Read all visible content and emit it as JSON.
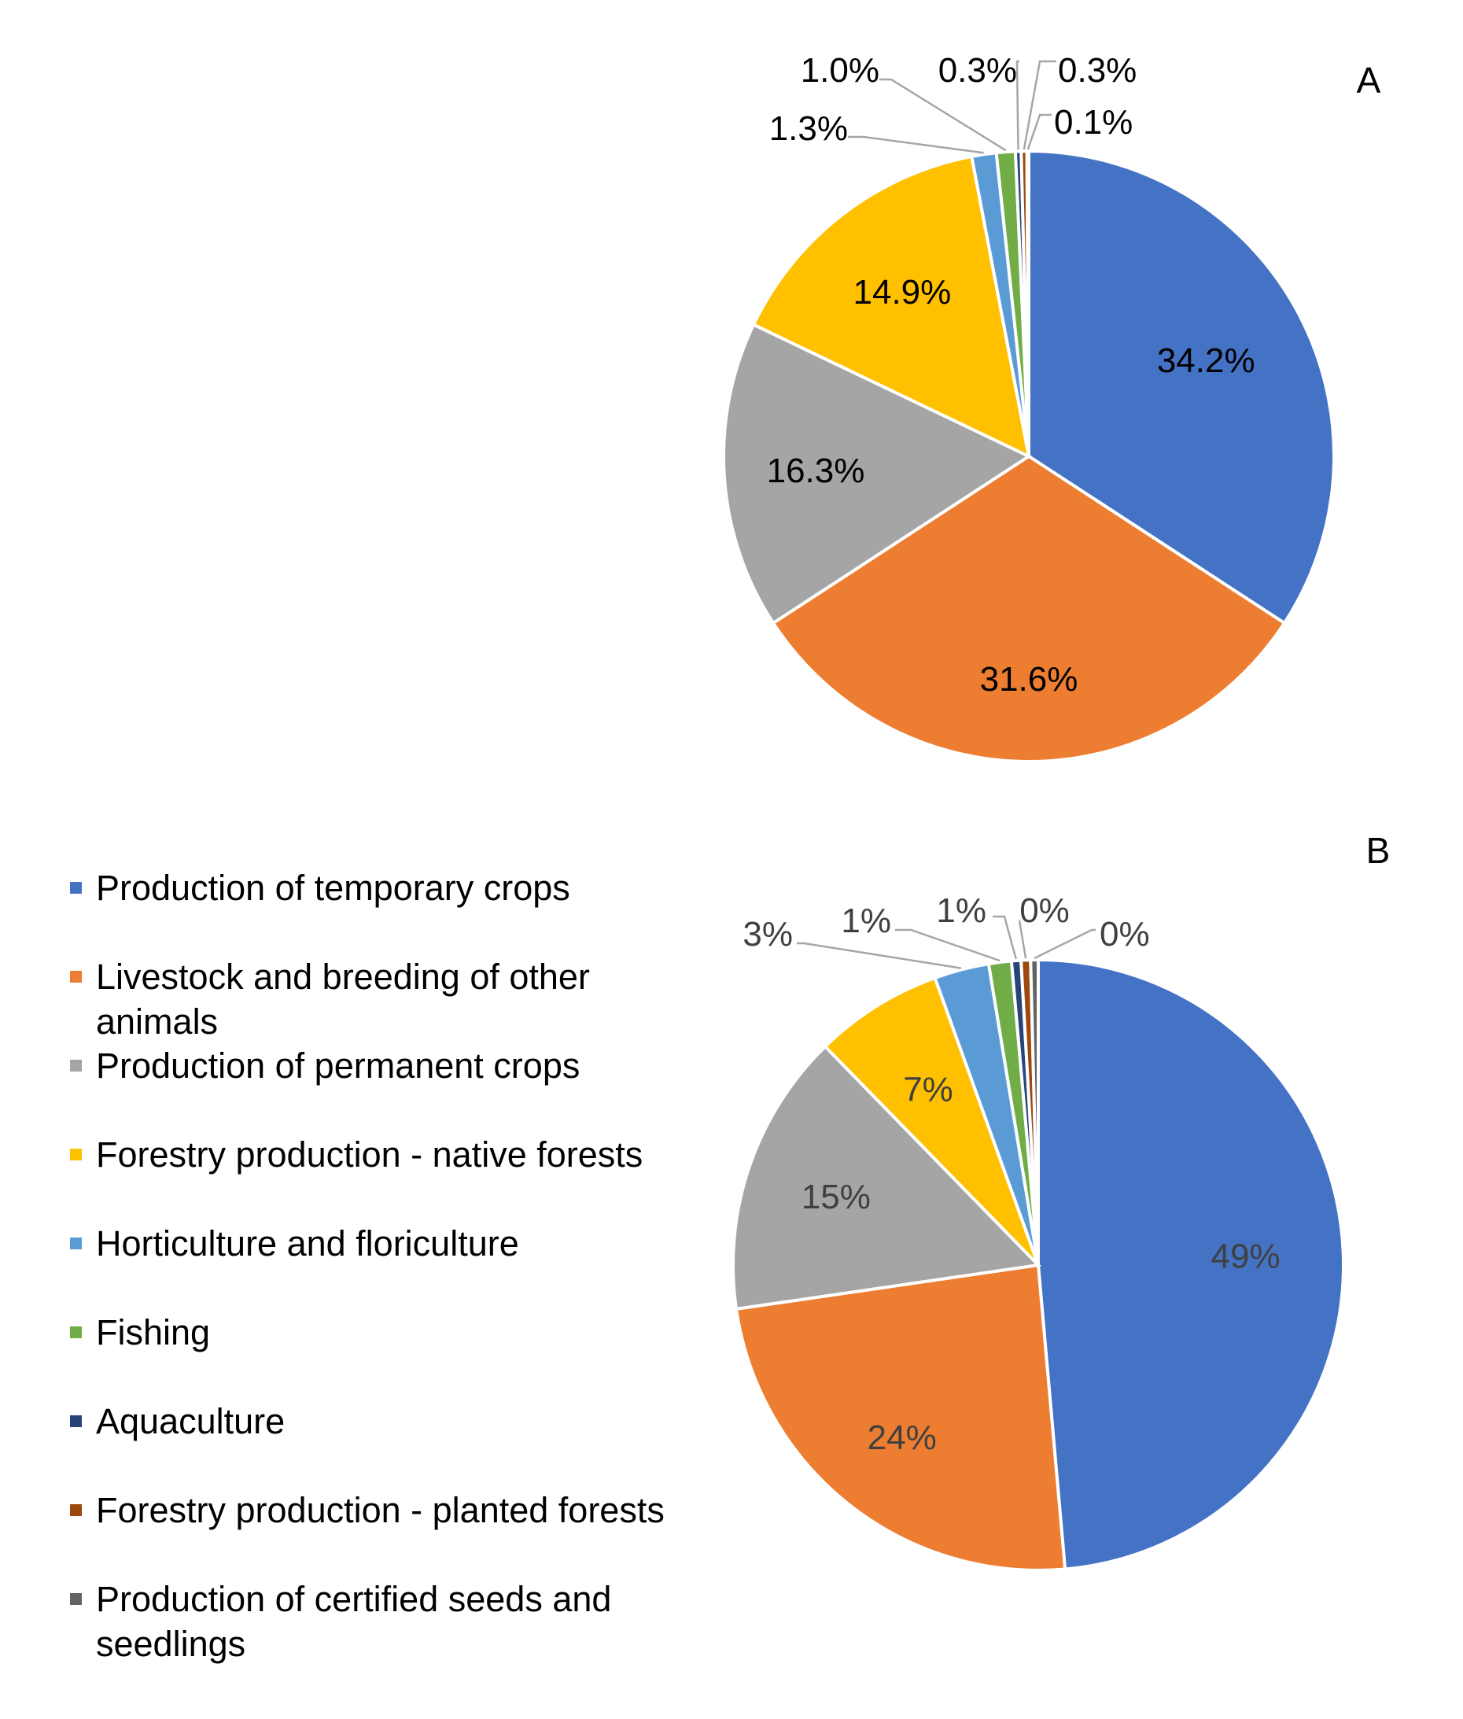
{
  "chart_data": [
    {
      "type": "pie",
      "panel_label": "A",
      "categories": [
        "Production of temporary crops",
        "Livestock and breeding of other animals",
        "Production of permanent crops",
        "Forestry production - native forests",
        "Horticulture and floriculture",
        "Fishing",
        "Aquaculture",
        "Forestry production - planted forests",
        "Production of certified seeds and seedlings"
      ],
      "values": [
        34.2,
        31.6,
        16.3,
        14.9,
        1.3,
        1.0,
        0.3,
        0.3,
        0.1
      ],
      "data_labels": [
        "34.2%",
        "31.6%",
        "16.3%",
        "14.9%",
        "1.3%",
        "1.0%",
        "0.3%",
        "0.3%",
        "0.1%"
      ],
      "colors": [
        "#4472C4",
        "#ED7D31",
        "#A5A5A5",
        "#FFC000",
        "#5B9BD5",
        "#70AD47",
        "#264478",
        "#9E480E",
        "#636363"
      ],
      "label_color": "#000000"
    },
    {
      "type": "pie",
      "panel_label": "B",
      "categories": [
        "Production of temporary crops",
        "Livestock and breeding of other animals",
        "Production of permanent crops",
        "Forestry production - native forests",
        "Horticulture and floriculture",
        "Fishing",
        "Aquaculture",
        "Forestry production - planted forests",
        "Production of certified seeds and seedlings"
      ],
      "values": [
        48.6,
        24.1,
        15.0,
        6.8,
        2.9,
        1.2,
        0.5,
        0.5,
        0.4
      ],
      "data_labels": [
        "49%",
        "24%",
        "15%",
        "7%",
        "3%",
        "1%",
        "1%",
        "0%",
        "0%"
      ],
      "colors": [
        "#4472C4",
        "#ED7D31",
        "#A5A5A5",
        "#FFC000",
        "#5B9BD5",
        "#70AD47",
        "#264478",
        "#9E480E",
        "#636363"
      ],
      "label_color": "#404040"
    }
  ],
  "legend": {
    "placement": "left of panel B",
    "items": [
      {
        "label": "Production of temporary crops",
        "color": "#4472C4"
      },
      {
        "label": "Livestock and breeding of other animals",
        "color": "#ED7D31"
      },
      {
        "label": "Production of permanent crops",
        "color": "#A5A5A5"
      },
      {
        "label": "Forestry production - native forests",
        "color": "#FFC000"
      },
      {
        "label": "Horticulture and floriculture",
        "color": "#5B9BD5"
      },
      {
        "label": "Fishing",
        "color": "#70AD47"
      },
      {
        "label": "Aquaculture",
        "color": "#264478"
      },
      {
        "label": "Forestry production - planted forests",
        "color": "#9E480E"
      },
      {
        "label": "Production of certified seeds and seedlings",
        "color": "#636363"
      }
    ]
  }
}
